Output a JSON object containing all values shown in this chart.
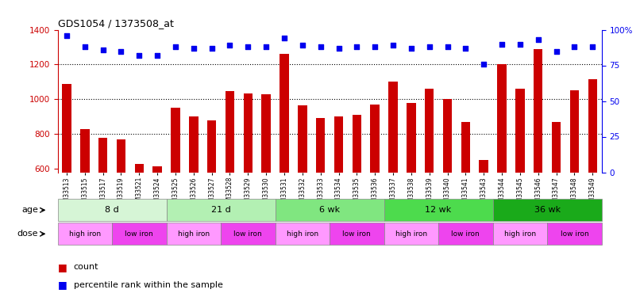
{
  "title": "GDS1054 / 1373508_at",
  "samples": [
    "GSM33513",
    "GSM33515",
    "GSM33517",
    "GSM33519",
    "GSM33521",
    "GSM33524",
    "GSM33525",
    "GSM33526",
    "GSM33527",
    "GSM33528",
    "GSM33529",
    "GSM33530",
    "GSM33531",
    "GSM33532",
    "GSM33533",
    "GSM33534",
    "GSM33535",
    "GSM33536",
    "GSM33537",
    "GSM33538",
    "GSM33539",
    "GSM33540",
    "GSM33541",
    "GSM33543",
    "GSM33544",
    "GSM33545",
    "GSM33546",
    "GSM33547",
    "GSM33548",
    "GSM33549"
  ],
  "counts": [
    1090,
    830,
    780,
    770,
    630,
    615,
    950,
    900,
    880,
    1045,
    1035,
    1030,
    1260,
    965,
    890,
    900,
    910,
    970,
    1100,
    980,
    1060,
    1000,
    870,
    650,
    1200,
    1060,
    1290,
    870,
    1050,
    1115
  ],
  "percentile_ranks": [
    96,
    88,
    86,
    85,
    82,
    82,
    88,
    87,
    87,
    89,
    88,
    88,
    94,
    89,
    88,
    87,
    88,
    88,
    89,
    87,
    88,
    88,
    87,
    76,
    90,
    90,
    93,
    85,
    88,
    88
  ],
  "age_groups": [
    {
      "label": "8 d",
      "start": 0,
      "end": 6
    },
    {
      "label": "21 d",
      "start": 6,
      "end": 12
    },
    {
      "label": "6 wk",
      "start": 12,
      "end": 18
    },
    {
      "label": "12 wk",
      "start": 18,
      "end": 24
    },
    {
      "label": "36 wk",
      "start": 24,
      "end": 30
    }
  ],
  "age_colors": [
    "#d6f5d6",
    "#b3f0b3",
    "#80e680",
    "#4ddb4d",
    "#1aaa1a"
  ],
  "dose_groups": [
    {
      "label": "high iron",
      "start": 0,
      "end": 3
    },
    {
      "label": "low iron",
      "start": 3,
      "end": 6
    },
    {
      "label": "high iron",
      "start": 6,
      "end": 9
    },
    {
      "label": "low iron",
      "start": 9,
      "end": 12
    },
    {
      "label": "high iron",
      "start": 12,
      "end": 15
    },
    {
      "label": "low iron",
      "start": 15,
      "end": 18
    },
    {
      "label": "high iron",
      "start": 18,
      "end": 21
    },
    {
      "label": "low iron",
      "start": 21,
      "end": 24
    },
    {
      "label": "high iron",
      "start": 24,
      "end": 27
    },
    {
      "label": "low iron",
      "start": 27,
      "end": 30
    }
  ],
  "dose_color_high": "#ff99ff",
  "dose_color_low": "#ee44ee",
  "ylim_left": [
    580,
    1400
  ],
  "ylim_right": [
    0,
    100
  ],
  "yticks_left": [
    600,
    800,
    1000,
    1200,
    1400
  ],
  "yticks_right": [
    0,
    25,
    50,
    75,
    100
  ],
  "bar_color": "#cc0000",
  "dot_color": "#0000ee",
  "background_color": "#ffffff"
}
